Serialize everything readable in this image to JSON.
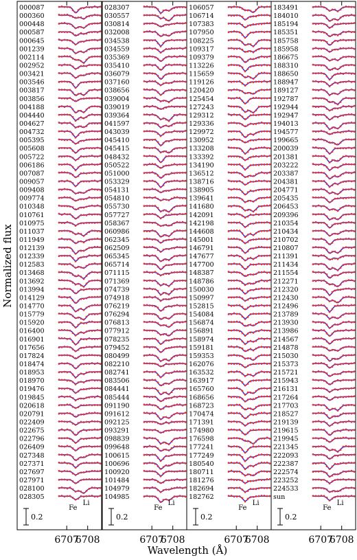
{
  "chart_data": {
    "type": "line",
    "ylabel": "Normalized flux",
    "xlabel": "Wavelength (Å)",
    "x_ticks": [
      "6707",
      "6708"
    ],
    "xlim": [
      6706.6,
      6708.6
    ],
    "scale_bar_label": "0.2",
    "line_labels": [
      [
        "Fe",
        "Li"
      ],
      [
        "Fe",
        "Li"
      ],
      [
        "Fe",
        "Li"
      ],
      [
        "Fe",
        "Li"
      ]
    ],
    "colors": {
      "observed": "#e8322e",
      "model": "#3a2ad8"
    },
    "panels": [
      {
        "stars": [
          "000087",
          "000360",
          "000448",
          "000587",
          "000645",
          "001239",
          "002114",
          "002952",
          "003421",
          "003546",
          "003817",
          "003856",
          "004188",
          "004440",
          "004627",
          "004732",
          "005395",
          "005608",
          "005722",
          "006186",
          "007087",
          "009057",
          "009408",
          "009774",
          "010348",
          "010761",
          "010975",
          "011037",
          "011949",
          "012139",
          "012339",
          "012583",
          "013468",
          "013692",
          "013994",
          "014129",
          "014770",
          "015779",
          "015920",
          "016400",
          "016901",
          "017656",
          "017824",
          "018474",
          "018953",
          "018970",
          "019476",
          "019845",
          "020618",
          "020791",
          "022409",
          "022675",
          "022796",
          "026409",
          "027348",
          "027371",
          "027697",
          "027971",
          "028100",
          "028305"
        ]
      },
      {
        "stars": [
          "028307",
          "030557",
          "030814",
          "032008",
          "034538",
          "034559",
          "035369",
          "035410",
          "036079",
          "037160",
          "038656",
          "039004",
          "039019",
          "039364",
          "041597",
          "043039",
          "045410",
          "045415",
          "048432",
          "050522",
          "051000",
          "053329",
          "054131",
          "054810",
          "055730",
          "057727",
          "058367",
          "060986",
          "062345",
          "062509",
          "065345",
          "065714",
          "071115",
          "071369",
          "074739",
          "074918",
          "076219",
          "076294",
          "076813",
          "077912",
          "078235",
          "079452",
          "080499",
          "082210",
          "082741",
          "083506",
          "084441",
          "085444",
          "091190",
          "091612",
          "092125",
          "093291",
          "098839",
          "099648",
          "100615",
          "100696",
          "100920",
          "101484",
          "104979",
          "104985"
        ]
      },
      {
        "stars": [
          "106057",
          "106714",
          "107383",
          "107950",
          "108225",
          "109317",
          "109379",
          "113226",
          "115659",
          "119126",
          "120420",
          "125454",
          "127243",
          "129312",
          "129336",
          "129972",
          "130952",
          "133208",
          "133392",
          "134190",
          "136512",
          "138716",
          "138905",
          "139641",
          "141680",
          "142091",
          "142198",
          "144608",
          "145001",
          "146791",
          "147677",
          "147700",
          "148387",
          "148786",
          "150030",
          "150997",
          "152815",
          "154084",
          "156874",
          "156891",
          "158974",
          "159181",
          "159353",
          "162076",
          "163532",
          "163917",
          "165760",
          "168656",
          "168723",
          "170474",
          "171391",
          "174980",
          "176598",
          "177241",
          "177249",
          "180540",
          "180711",
          "181276",
          "182694",
          "182762"
        ]
      },
      {
        "stars": [
          "183491",
          "184010",
          "185194",
          "185351",
          "185758",
          "185958",
          "186675",
          "188310",
          "188650",
          "188947",
          "189127",
          "192787",
          "192944",
          "192947",
          "194013",
          "194577",
          "199665",
          "200039",
          "201381",
          "203222",
          "203387",
          "204381",
          "204771",
          "205435",
          "206453",
          "209396",
          "210354",
          "210434",
          "210702",
          "210807",
          "211391",
          "211434",
          "211554",
          "212271",
          "212320",
          "212430",
          "212496",
          "213789",
          "213930",
          "213986",
          "214567",
          "214878",
          "215030",
          "215373",
          "215721",
          "215943",
          "216131",
          "217264",
          "217703",
          "218527",
          "219139",
          "219615",
          "219945",
          "221345",
          "222093",
          "222387",
          "222574",
          "223252",
          "224533",
          "sun"
        ]
      }
    ]
  }
}
